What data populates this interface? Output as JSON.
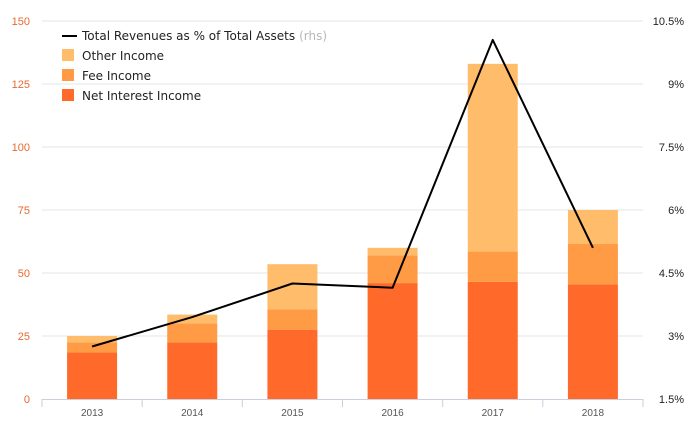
{
  "chart_data": {
    "type": "bar",
    "stacked": true,
    "categories": [
      "2013",
      "2014",
      "2015",
      "2016",
      "2017",
      "2018"
    ],
    "series": [
      {
        "name": "Net Interest Income",
        "values": [
          18.5,
          22.5,
          27.5,
          46,
          46.5,
          45.5
        ]
      },
      {
        "name": "Fee Income",
        "values": [
          4,
          7.5,
          8,
          11,
          12,
          16
        ]
      },
      {
        "name": "Other Income",
        "values": [
          2.5,
          3.5,
          18,
          3,
          74.5,
          13.5
        ]
      }
    ],
    "line_series": {
      "name": "Total Revenues as % of Total Assets",
      "name_suffix": "(rhs)",
      "axis": "right",
      "values": [
        2.75,
        3.45,
        4.25,
        4.15,
        10.05,
        5.1
      ]
    },
    "ylim": [
      0,
      150
    ],
    "y_ticks": [
      "0",
      "25",
      "50",
      "75",
      "100",
      "125",
      "150"
    ],
    "y2lim": [
      1.5,
      10.5
    ],
    "y2_ticks": [
      "1.5%",
      "3%",
      "4.5%",
      "6%",
      "7.5%",
      "9%",
      "10.5%"
    ],
    "grid": true,
    "legend_position": "top-left",
    "colors": {
      "Net Interest Income": "#ff6a2b",
      "Fee Income": "#ff9a45",
      "Other Income": "#ffbd6b",
      "line": "#000000",
      "left_axis_text": "#e8692f",
      "grid": "#e6e6e6"
    }
  }
}
